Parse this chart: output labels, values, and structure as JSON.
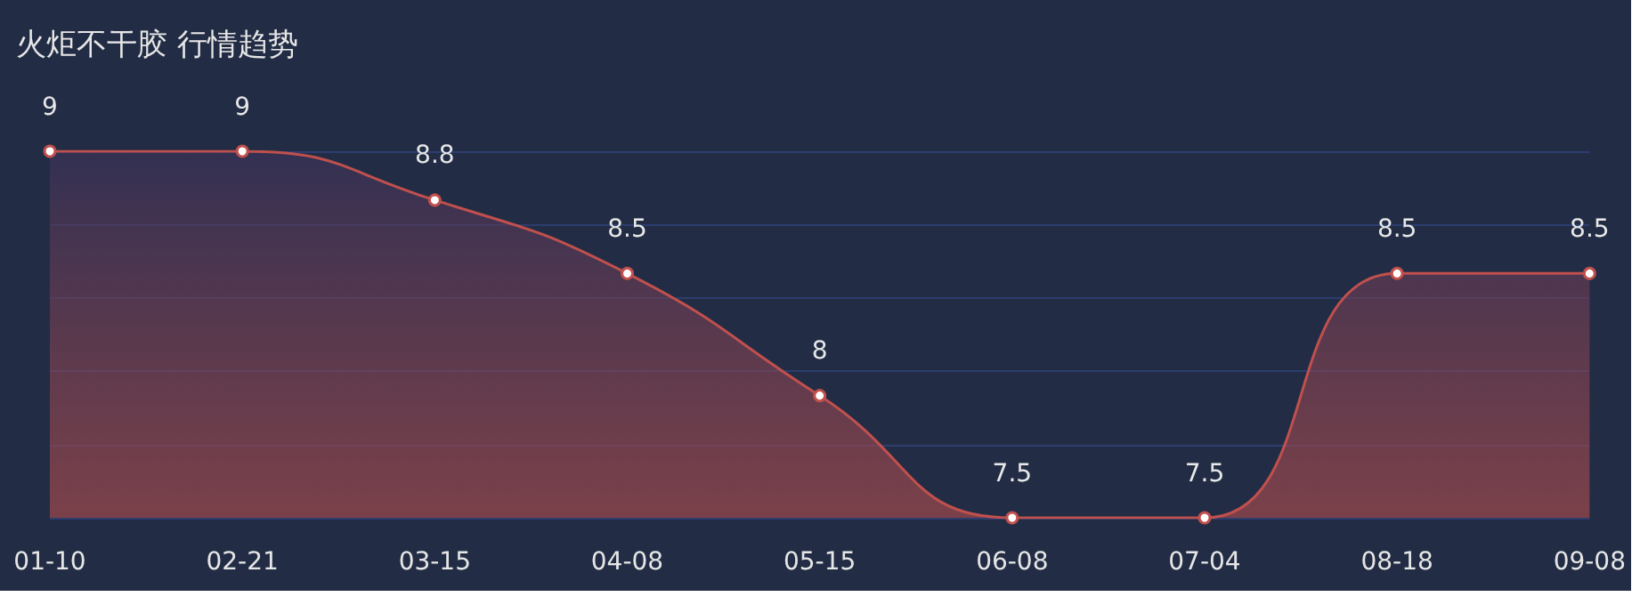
{
  "chart_data": {
    "type": "area",
    "title": "火炬不干胶 行情趋势",
    "categories": [
      "01-10",
      "02-21",
      "03-15",
      "04-08",
      "05-15",
      "06-08",
      "07-04",
      "08-18",
      "09-08"
    ],
    "series": [
      {
        "color": "#c0504d",
        "values": [
          9,
          9,
          8.8,
          8.5,
          8,
          7.5,
          7.5,
          8.5,
          8.5
        ]
      }
    ],
    "ylim": [
      7.5,
      9
    ],
    "yticks": [
      {
        "value": 7.5,
        "label": null
      },
      {
        "value": 7.8,
        "label": null
      },
      {
        "value": 8.1,
        "label": null
      },
      {
        "value": 8.4,
        "label": null
      },
      {
        "value": 8.7,
        "label": null
      },
      {
        "value": 9,
        "label": null
      }
    ],
    "tick_labels": "x",
    "grid": "y",
    "data_labels": true,
    "marker": "circle"
  }
}
